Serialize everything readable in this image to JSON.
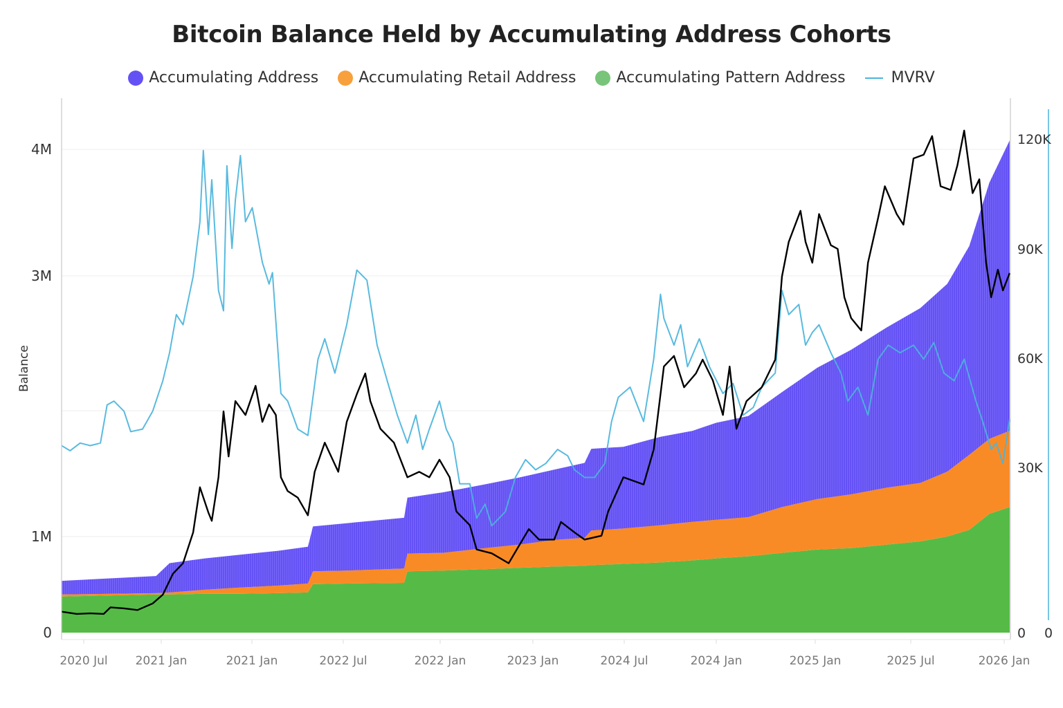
{
  "chart_data": {
    "type": "area",
    "title": "Bitcoin Balance Held by Accumulating Address Cohorts",
    "legend": [
      {
        "name": "Accumulating Address",
        "color": "#6451f5",
        "marker": "circle"
      },
      {
        "name": "Accumulating Retail Address",
        "color": "#f7a03c",
        "marker": "circle"
      },
      {
        "name": "Accumulating Pattern Address",
        "color": "#78c47a",
        "marker": "circle"
      },
      {
        "name": "MVRV",
        "color": "#4ab4dc",
        "marker": "line"
      }
    ],
    "legend_position": "top",
    "grid": true,
    "y_left": {
      "label": "Balance",
      "ticks": [
        "0",
        "1M",
        "3M",
        "4M"
      ],
      "tick_values": [
        0,
        1000000,
        3000000,
        4000000
      ],
      "gridline_values": [
        1000000,
        2000000,
        3000000,
        4000000
      ]
    },
    "y_right": {
      "ticks": [
        "0",
        "30K",
        "60K",
        "90K",
        "120K"
      ],
      "tick_values": [
        0,
        30000,
        60000,
        90000,
        120000
      ]
    },
    "y_mvrv": {
      "ticks": [
        "0"
      ],
      "tick_values": [
        0
      ]
    },
    "x_ticks": [
      "2020 Jul",
      "2021 Jan",
      "2021 Jan",
      "2022 Jul",
      "2022 Jan",
      "2023 Jan",
      "2024 Jul",
      "2024 Jan",
      "2025 Jan",
      "2025 Jul",
      "2026 Jan"
    ],
    "stacked": {
      "x": [
        2020.42,
        2020.98,
        2021.06,
        2021.27,
        2021.47,
        2021.7,
        2021.88,
        2021.91,
        2022.11,
        2022.45,
        2022.47,
        2022.68,
        2022.93,
        2023.13,
        2023.34,
        2023.52,
        2023.56,
        2023.75,
        2023.97,
        2024.16,
        2024.3,
        2024.49,
        2024.69,
        2024.9,
        2025.1,
        2025.31,
        2025.51,
        2025.67,
        2025.8,
        2025.92,
        2026.04
      ],
      "series": [
        {
          "name": "Accumulating Pattern Address",
          "color": "#55bb46",
          "values": [
            376000,
            397000,
            397000,
            404000,
            404000,
            411000,
            418000,
            504000,
            511000,
            518000,
            638000,
            645000,
            660000,
            674000,
            688000,
            695000,
            702000,
            716000,
            730000,
            752000,
            773000,
            794000,
            830000,
            865000,
            879000,
            915000,
            950000,
            1000000,
            1053000,
            1181000,
            1234000
          ]
        },
        {
          "name": "Accumulating Retail Address",
          "color": "#f98b26",
          "values": [
            21000,
            14000,
            21000,
            43000,
            64000,
            78000,
            93000,
            134000,
            134000,
            149000,
            185000,
            185000,
            219000,
            241000,
            277000,
            291000,
            346000,
            348000,
            360000,
            365000,
            360000,
            360000,
            404000,
            433000,
            456000,
            473000,
            476000,
            516000,
            596000,
            596000,
            606000
          ]
        },
        {
          "name": "Accumulating Address",
          "color": "#6451f5",
          "values": [
            142000,
            178000,
            305000,
            326000,
            341000,
            362000,
            383000,
            442000,
            461000,
            482000,
            486000,
            521000,
            536000,
            553000,
            567000,
            599000,
            649000,
            649000,
            703000,
            723000,
            771000,
            803000,
            904000,
            1021000,
            1117000,
            1229000,
            1335000,
            1425000,
            1586000,
            1961000,
            2231000
          ]
        }
      ]
    },
    "price_line": {
      "color": "#000000",
      "axis": "right",
      "points": [
        [
          2020.42,
          3800
        ],
        [
          2020.51,
          3400
        ],
        [
          2020.59,
          3500
        ],
        [
          2020.67,
          3400
        ],
        [
          2020.71,
          4600
        ],
        [
          2020.79,
          4400
        ],
        [
          2020.87,
          4100
        ],
        [
          2020.96,
          5300
        ],
        [
          2021.02,
          6900
        ],
        [
          2021.08,
          10700
        ],
        [
          2021.14,
          12600
        ],
        [
          2021.2,
          18200
        ],
        [
          2021.24,
          26400
        ],
        [
          2021.29,
          21800
        ],
        [
          2021.31,
          20300
        ],
        [
          2021.35,
          28200
        ],
        [
          2021.38,
          45400
        ],
        [
          2021.41,
          33000
        ],
        [
          2021.45,
          48200
        ],
        [
          2021.51,
          44400
        ],
        [
          2021.57,
          52400
        ],
        [
          2021.61,
          42500
        ],
        [
          2021.65,
          47300
        ],
        [
          2021.69,
          44400
        ],
        [
          2021.72,
          28200
        ],
        [
          2021.76,
          25700
        ],
        [
          2021.82,
          24500
        ],
        [
          2021.88,
          21300
        ],
        [
          2021.92,
          29200
        ],
        [
          2021.98,
          36800
        ],
        [
          2022.06,
          29200
        ],
        [
          2022.11,
          42500
        ],
        [
          2022.17,
          50100
        ],
        [
          2022.22,
          55800
        ],
        [
          2022.25,
          48200
        ],
        [
          2022.31,
          40600
        ],
        [
          2022.39,
          36800
        ],
        [
          2022.47,
          28200
        ],
        [
          2022.54,
          29200
        ],
        [
          2022.6,
          28200
        ],
        [
          2022.66,
          32100
        ],
        [
          2022.72,
          28200
        ],
        [
          2022.76,
          22000
        ],
        [
          2022.84,
          19500
        ],
        [
          2022.88,
          15100
        ],
        [
          2022.97,
          14400
        ],
        [
          2023.07,
          12600
        ],
        [
          2023.13,
          15700
        ],
        [
          2023.19,
          18800
        ],
        [
          2023.25,
          16900
        ],
        [
          2023.34,
          16900
        ],
        [
          2023.38,
          20100
        ],
        [
          2023.46,
          18200
        ],
        [
          2023.52,
          16900
        ],
        [
          2023.62,
          17600
        ],
        [
          2023.66,
          22000
        ],
        [
          2023.75,
          28200
        ],
        [
          2023.87,
          26900
        ],
        [
          2023.93,
          34900
        ],
        [
          2023.99,
          57700
        ],
        [
          2024.05,
          60600
        ],
        [
          2024.11,
          52000
        ],
        [
          2024.18,
          55800
        ],
        [
          2024.22,
          59600
        ],
        [
          2024.28,
          53900
        ],
        [
          2024.34,
          44400
        ],
        [
          2024.38,
          57700
        ],
        [
          2024.42,
          40600
        ],
        [
          2024.48,
          48200
        ],
        [
          2024.57,
          52000
        ],
        [
          2024.65,
          59600
        ],
        [
          2024.69,
          82400
        ],
        [
          2024.73,
          91900
        ],
        [
          2024.8,
          100400
        ],
        [
          2024.83,
          91900
        ],
        [
          2024.87,
          86200
        ],
        [
          2024.91,
          99500
        ],
        [
          2024.98,
          91000
        ],
        [
          2025.02,
          90000
        ],
        [
          2025.06,
          76700
        ],
        [
          2025.1,
          71000
        ],
        [
          2025.16,
          67600
        ],
        [
          2025.2,
          86200
        ],
        [
          2025.26,
          98500
        ],
        [
          2025.3,
          107100
        ],
        [
          2025.37,
          99500
        ],
        [
          2025.41,
          96600
        ],
        [
          2025.47,
          114700
        ],
        [
          2025.53,
          115700
        ],
        [
          2025.58,
          120800
        ],
        [
          2025.63,
          107100
        ],
        [
          2025.69,
          106100
        ],
        [
          2025.73,
          112800
        ],
        [
          2025.77,
          122300
        ],
        [
          2025.82,
          105200
        ],
        [
          2025.86,
          109000
        ],
        [
          2025.9,
          86200
        ],
        [
          2025.93,
          76700
        ],
        [
          2025.97,
          84300
        ],
        [
          2026.0,
          78600
        ],
        [
          2026.04,
          83400
        ]
      ]
    },
    "mvrv": {
      "name": "MVRV",
      "color": "#4ab4dc",
      "points": [
        [
          2020.42,
          1.47
        ],
        [
          2020.47,
          1.43
        ],
        [
          2020.53,
          1.49
        ],
        [
          2020.59,
          1.47
        ],
        [
          2020.65,
          1.49
        ],
        [
          2020.69,
          1.79
        ],
        [
          2020.73,
          1.82
        ],
        [
          2020.79,
          1.74
        ],
        [
          2020.83,
          1.58
        ],
        [
          2020.9,
          1.6
        ],
        [
          2020.96,
          1.74
        ],
        [
          2021.02,
          1.98
        ],
        [
          2021.06,
          2.2
        ],
        [
          2021.1,
          2.5
        ],
        [
          2021.14,
          2.42
        ],
        [
          2021.2,
          2.8
        ],
        [
          2021.24,
          3.23
        ],
        [
          2021.26,
          3.79
        ],
        [
          2021.29,
          3.13
        ],
        [
          2021.31,
          3.56
        ],
        [
          2021.35,
          2.69
        ],
        [
          2021.38,
          2.53
        ],
        [
          2021.4,
          3.67
        ],
        [
          2021.43,
          3.02
        ],
        [
          2021.45,
          3.4
        ],
        [
          2021.48,
          3.75
        ],
        [
          2021.51,
          3.23
        ],
        [
          2021.55,
          3.34
        ],
        [
          2021.61,
          2.91
        ],
        [
          2021.65,
          2.74
        ],
        [
          2021.67,
          2.83
        ],
        [
          2021.72,
          1.88
        ],
        [
          2021.76,
          1.82
        ],
        [
          2021.82,
          1.6
        ],
        [
          2021.88,
          1.55
        ],
        [
          2021.94,
          2.15
        ],
        [
          2021.98,
          2.31
        ],
        [
          2022.04,
          2.04
        ],
        [
          2022.11,
          2.42
        ],
        [
          2022.17,
          2.85
        ],
        [
          2022.23,
          2.77
        ],
        [
          2022.29,
          2.26
        ],
        [
          2022.35,
          1.98
        ],
        [
          2022.41,
          1.71
        ],
        [
          2022.47,
          1.49
        ],
        [
          2022.52,
          1.71
        ],
        [
          2022.56,
          1.44
        ],
        [
          2022.6,
          1.6
        ],
        [
          2022.66,
          1.82
        ],
        [
          2022.7,
          1.6
        ],
        [
          2022.74,
          1.49
        ],
        [
          2022.78,
          1.17
        ],
        [
          2022.84,
          1.17
        ],
        [
          2022.88,
          0.9
        ],
        [
          2022.93,
          1.01
        ],
        [
          2022.97,
          0.84
        ],
        [
          2023.05,
          0.95
        ],
        [
          2023.11,
          1.22
        ],
        [
          2023.17,
          1.36
        ],
        [
          2023.23,
          1.28
        ],
        [
          2023.29,
          1.33
        ],
        [
          2023.36,
          1.44
        ],
        [
          2023.42,
          1.39
        ],
        [
          2023.46,
          1.28
        ],
        [
          2023.52,
          1.22
        ],
        [
          2023.58,
          1.22
        ],
        [
          2023.64,
          1.33
        ],
        [
          2023.68,
          1.66
        ],
        [
          2023.72,
          1.85
        ],
        [
          2023.79,
          1.93
        ],
        [
          2023.87,
          1.66
        ],
        [
          2023.93,
          2.15
        ],
        [
          2023.97,
          2.66
        ],
        [
          2023.99,
          2.47
        ],
        [
          2024.05,
          2.26
        ],
        [
          2024.09,
          2.42
        ],
        [
          2024.13,
          2.09
        ],
        [
          2024.2,
          2.31
        ],
        [
          2024.26,
          2.09
        ],
        [
          2024.34,
          1.88
        ],
        [
          2024.4,
          1.96
        ],
        [
          2024.46,
          1.71
        ],
        [
          2024.52,
          1.77
        ],
        [
          2024.57,
          1.93
        ],
        [
          2024.65,
          2.04
        ],
        [
          2024.69,
          2.69
        ],
        [
          2024.73,
          2.5
        ],
        [
          2024.79,
          2.58
        ],
        [
          2024.83,
          2.26
        ],
        [
          2024.87,
          2.36
        ],
        [
          2024.91,
          2.42
        ],
        [
          2024.98,
          2.2
        ],
        [
          2025.04,
          2.04
        ],
        [
          2025.08,
          1.82
        ],
        [
          2025.14,
          1.93
        ],
        [
          2025.2,
          1.71
        ],
        [
          2025.26,
          2.15
        ],
        [
          2025.32,
          2.26
        ],
        [
          2025.39,
          2.2
        ],
        [
          2025.47,
          2.26
        ],
        [
          2025.53,
          2.15
        ],
        [
          2025.59,
          2.28
        ],
        [
          2025.65,
          2.04
        ],
        [
          2025.71,
          1.98
        ],
        [
          2025.77,
          2.15
        ],
        [
          2025.84,
          1.82
        ],
        [
          2025.88,
          1.66
        ],
        [
          2025.93,
          1.44
        ],
        [
          2025.96,
          1.49
        ],
        [
          2026.0,
          1.33
        ],
        [
          2026.04,
          1.68
        ]
      ]
    }
  }
}
